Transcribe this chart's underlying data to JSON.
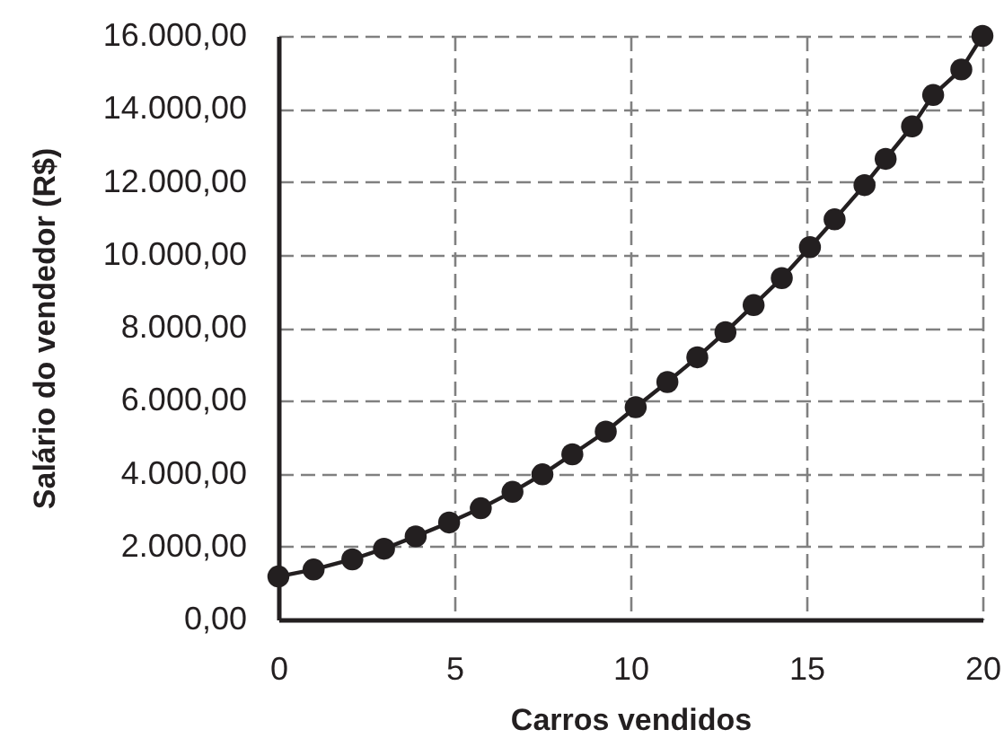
{
  "chart_data": {
    "type": "line",
    "xlabel": "Carros vendidos",
    "ylabel": "Salário do vendedor (R$)",
    "x": [
      0,
      1.0,
      2.1,
      3.0,
      3.9,
      4.85,
      5.75,
      6.65,
      7.5,
      8.35,
      9.3,
      10.15,
      11.05,
      11.9,
      12.7,
      13.5,
      14.3,
      15.1,
      15.8,
      16.65,
      17.25,
      18.0,
      18.6,
      19.4,
      20
    ],
    "series": [
      {
        "color": "#231f20",
        "values": [
          1180,
          1370,
          1650,
          1940,
          2280,
          2660,
          3050,
          3500,
          3980,
          4530,
          5150,
          5820,
          6510,
          7190,
          7880,
          8620,
          9360,
          10210,
          10970,
          11910,
          12630,
          13520,
          14380,
          15080,
          16000
        ]
      }
    ],
    "xlim": [
      0,
      20
    ],
    "xticks": [
      0,
      5,
      10,
      15,
      20
    ],
    "ylim": [
      0,
      16000
    ],
    "yticks": [
      {
        "value": 0,
        "label": "0,00"
      },
      {
        "value": 2000,
        "label": "2.000,00"
      },
      {
        "value": 4000,
        "label": "4.000,00"
      },
      {
        "value": 6000,
        "label": "6.000,00"
      },
      {
        "value": 8000,
        "label": "8.000,00"
      },
      {
        "value": 10000,
        "label": "10.000,00"
      },
      {
        "value": 12000,
        "label": "12.000,00"
      },
      {
        "value": 14000,
        "label": "14.000,00"
      },
      {
        "value": 16000,
        "label": "16.000,00"
      }
    ],
    "grid": true,
    "marker": "circle",
    "line_style": "solid"
  }
}
